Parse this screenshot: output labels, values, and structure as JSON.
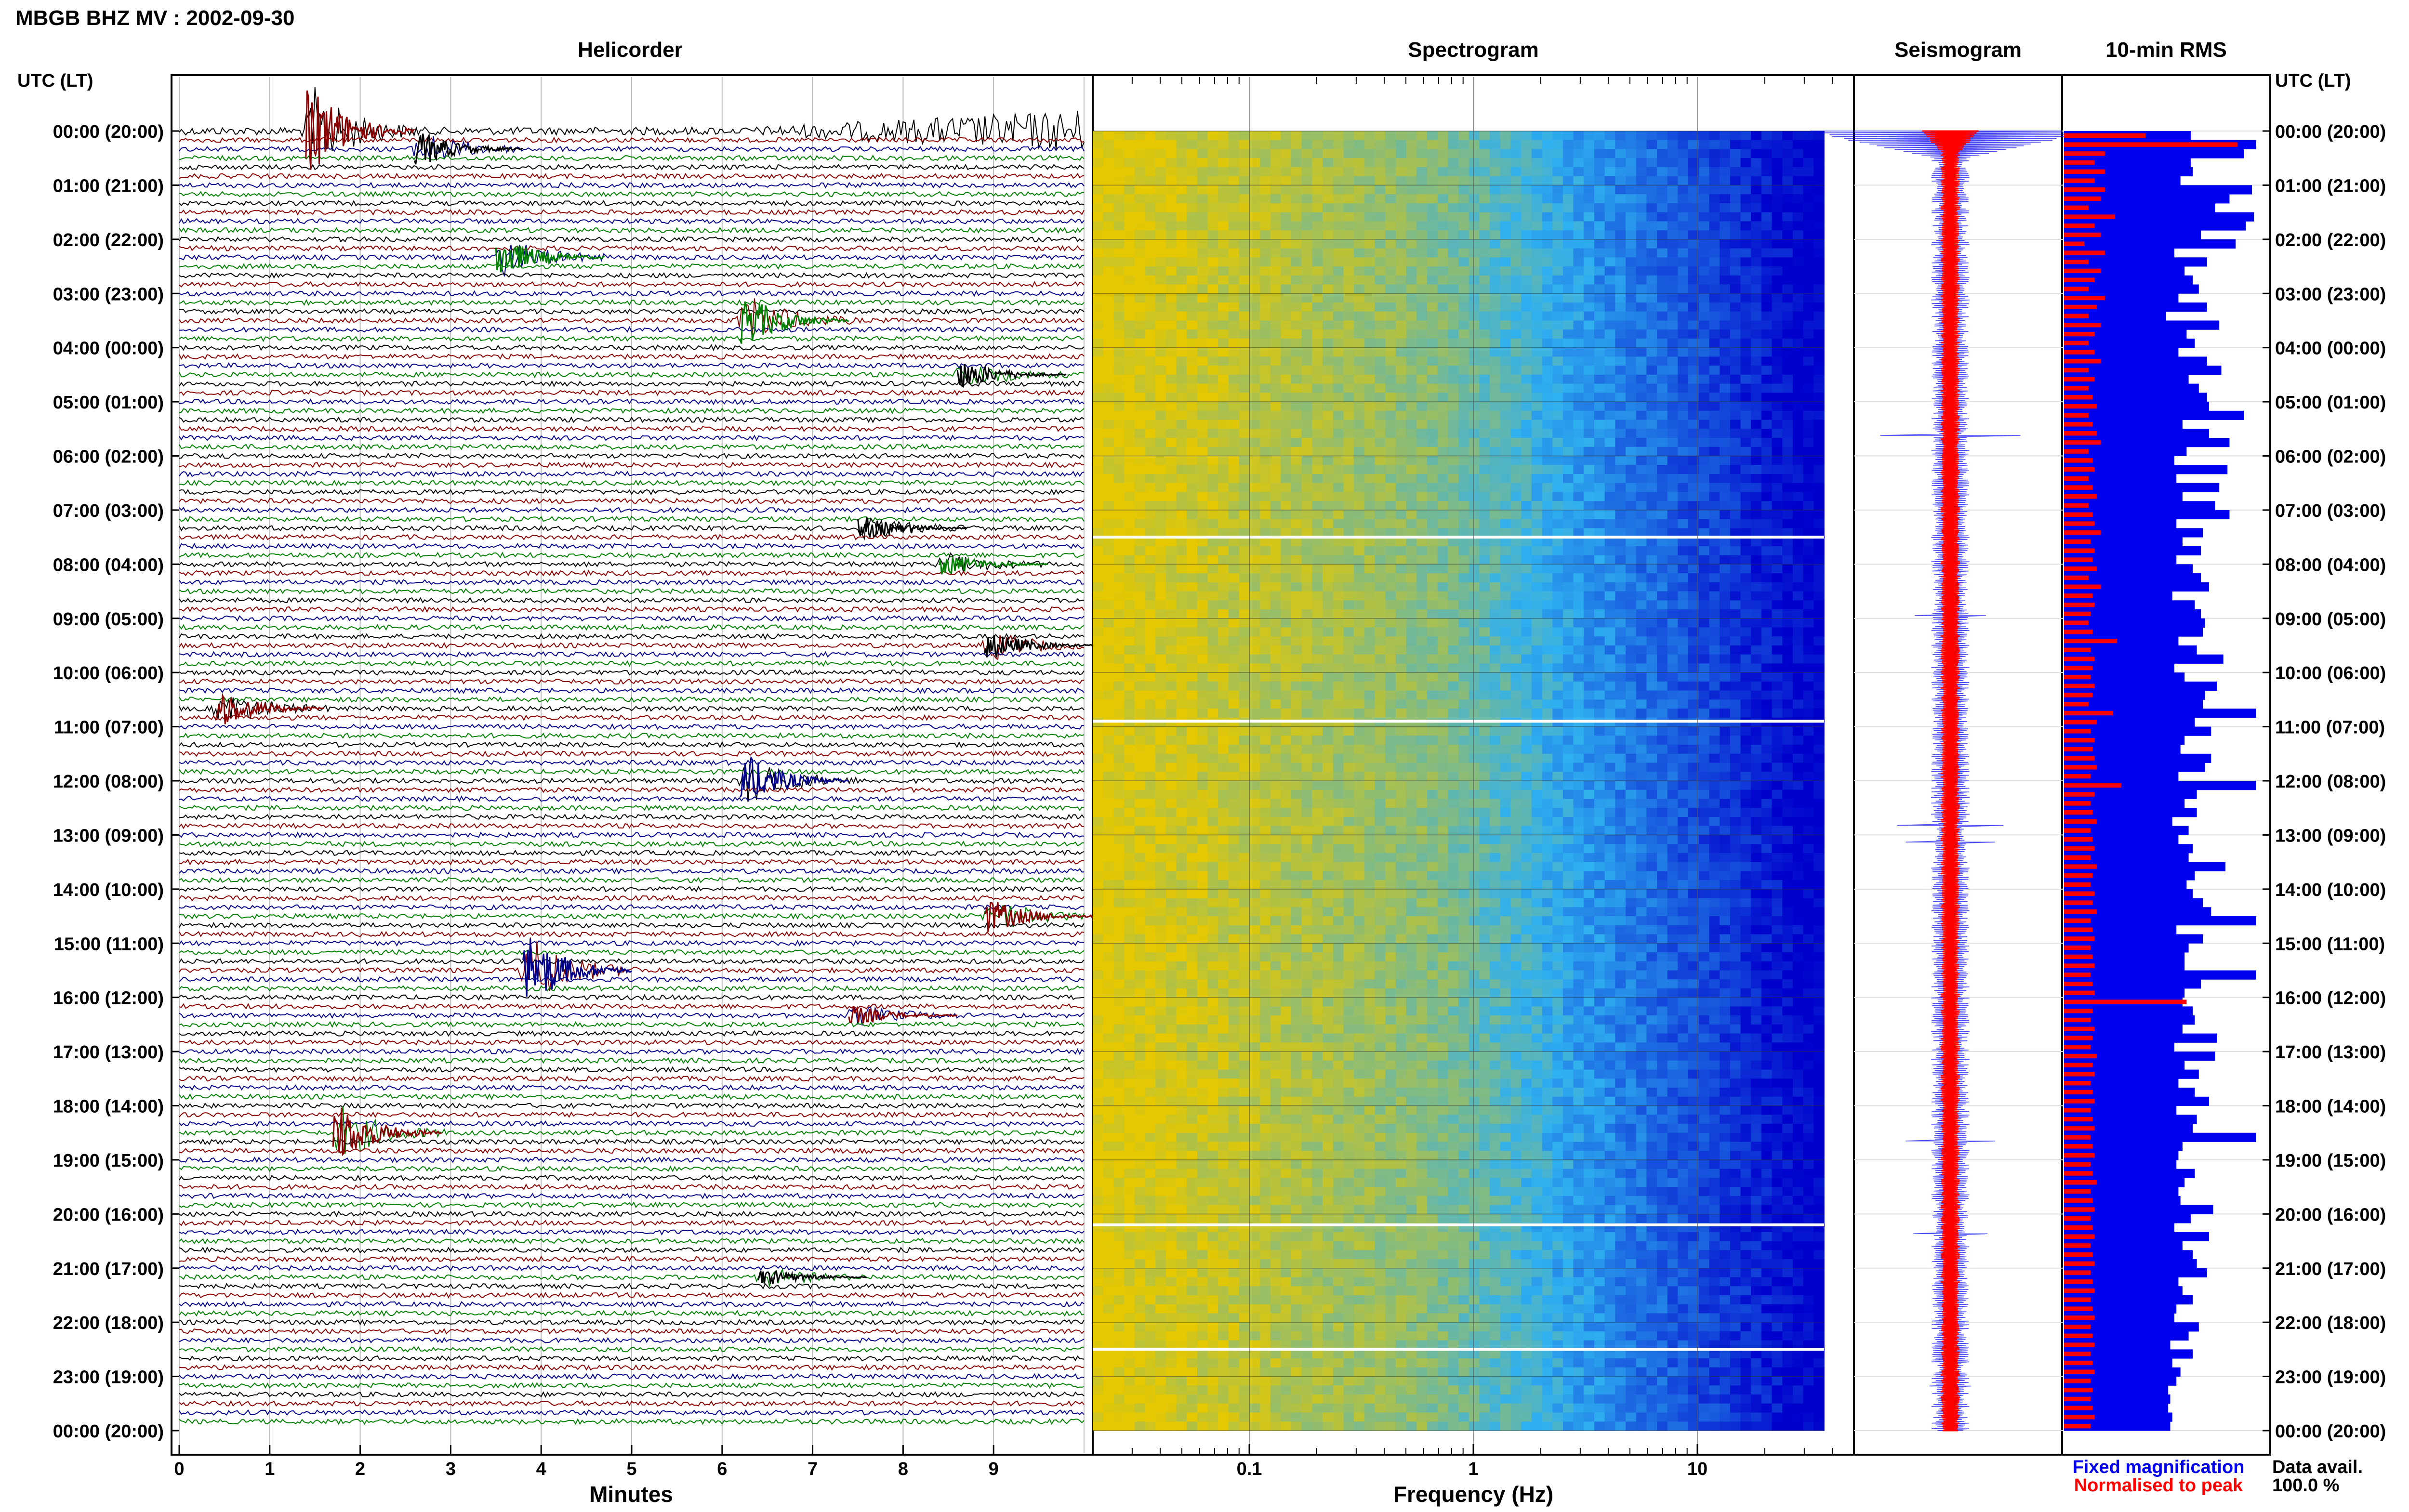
{
  "title": "MBGB BHZ MV : 2002-09-30",
  "panels": {
    "helicorder": "Helicorder",
    "spectrogram": "Spectrogram",
    "seismogram": "Seismogram",
    "rms": "10-min RMS"
  },
  "time_axis_label": "UTC (LT)",
  "time_labels": [
    "00:00 (20:00)",
    "01:00 (21:00)",
    "02:00 (22:00)",
    "03:00 (23:00)",
    "04:00 (00:00)",
    "05:00 (01:00)",
    "06:00 (02:00)",
    "07:00 (03:00)",
    "08:00 (04:00)",
    "09:00 (05:00)",
    "10:00 (06:00)",
    "11:00 (07:00)",
    "12:00 (08:00)",
    "13:00 (09:00)",
    "14:00 (10:00)",
    "15:00 (11:00)",
    "16:00 (12:00)",
    "17:00 (13:00)",
    "18:00 (14:00)",
    "19:00 (15:00)",
    "20:00 (16:00)",
    "21:00 (17:00)",
    "22:00 (18:00)",
    "23:00 (19:00)",
    "00:00 (20:00)"
  ],
  "helicorder_axis": {
    "label": "Minutes",
    "ticks": [
      "0",
      "1",
      "2",
      "3",
      "4",
      "5",
      "6",
      "7",
      "8",
      "9"
    ]
  },
  "spectrogram_axis": {
    "label": "Frequency (Hz)",
    "ticks": [
      "0.1",
      "1",
      "10"
    ]
  },
  "legend": {
    "fixed": "Fixed magnification",
    "normalised": "Normalised to peak"
  },
  "availability": {
    "label": "Data avail.",
    "value": "100.0 %"
  },
  "colors": {
    "trace_black": "#000000",
    "trace_red": "#8b0000",
    "trace_blue": "#00008b",
    "trace_green": "#008000",
    "fixed": "#0000ee",
    "normalised": "#ff0000",
    "spec_low": "#e6c800",
    "spec_mid": "#2fb0f0",
    "spec_high": "#0000cc"
  },
  "chart_data": {
    "type": "heatmap",
    "station": "MBGB BHZ MV",
    "date": "2002-09-30",
    "helicorder": {
      "minutes_per_line": 10,
      "lines": 144,
      "trace_colors": [
        "black",
        "red",
        "blue",
        "green"
      ],
      "events": [
        {
          "line": 0,
          "minute": 1.5,
          "amp": 3.0,
          "color": "red"
        },
        {
          "line": 2,
          "minute": 2.7,
          "amp": 1.2,
          "color": "black"
        },
        {
          "line": 14,
          "minute": 3.6,
          "amp": 1.4,
          "color": "green"
        },
        {
          "line": 21,
          "minute": 6.3,
          "amp": 1.8,
          "color": "green"
        },
        {
          "line": 27,
          "minute": 8.7,
          "amp": 1.0,
          "color": "black"
        },
        {
          "line": 44,
          "minute": 7.6,
          "amp": 0.8,
          "color": "black"
        },
        {
          "line": 48,
          "minute": 8.5,
          "amp": 0.8,
          "color": "green"
        },
        {
          "line": 57,
          "minute": 9.0,
          "amp": 1.0,
          "color": "black"
        },
        {
          "line": 64,
          "minute": 0.5,
          "amp": 1.3,
          "color": "red"
        },
        {
          "line": 72,
          "minute": 6.3,
          "amp": 1.8,
          "color": "blue"
        },
        {
          "line": 87,
          "minute": 9.0,
          "amp": 1.2,
          "color": "red"
        },
        {
          "line": 93,
          "minute": 3.9,
          "amp": 2.6,
          "color": "blue"
        },
        {
          "line": 98,
          "minute": 7.5,
          "amp": 0.7,
          "color": "red"
        },
        {
          "line": 111,
          "minute": 1.8,
          "amp": 2.0,
          "color": "red"
        },
        {
          "line": 127,
          "minute": 6.5,
          "amp": 0.6,
          "color": "black"
        }
      ]
    },
    "spectrogram": {
      "x_scale": "log",
      "xlim_hz": [
        0.02,
        50
      ],
      "rows": 144,
      "gaps_at_hour": [
        7.5,
        10.9,
        20.2,
        22.5
      ]
    },
    "rms_10min": {
      "fixed": [
        0.62,
        0.94,
        0.88,
        0.62,
        0.63,
        0.57,
        0.92,
        0.81,
        0.74,
        0.93,
        0.89,
        0.67,
        0.84,
        0.54,
        0.7,
        0.59,
        0.63,
        0.66,
        0.56,
        0.7,
        0.5,
        0.76,
        0.6,
        0.64,
        0.56,
        0.7,
        0.77,
        0.61,
        0.66,
        0.7,
        0.71,
        0.88,
        0.58,
        0.71,
        0.81,
        0.6,
        0.54,
        0.8,
        0.55,
        0.76,
        0.58,
        0.74,
        0.81,
        0.55,
        0.68,
        0.58,
        0.67,
        0.55,
        0.63,
        0.67,
        0.71,
        0.53,
        0.64,
        0.67,
        0.69,
        0.68,
        0.56,
        0.65,
        0.78,
        0.54,
        0.59,
        0.75,
        0.69,
        0.68,
        0.94,
        0.64,
        0.72,
        0.59,
        0.57,
        0.72,
        0.69,
        0.56,
        0.94,
        0.65,
        0.59,
        0.65,
        0.53,
        0.61,
        0.56,
        0.63,
        0.61,
        0.79,
        0.64,
        0.6,
        0.63,
        0.68,
        0.72,
        0.94,
        0.55,
        0.68,
        0.61,
        0.59,
        0.59,
        0.94,
        0.67,
        0.59,
        0.58,
        0.63,
        0.64,
        0.58,
        0.75,
        0.54,
        0.74,
        0.59,
        0.66,
        0.56,
        0.64,
        0.71,
        0.55,
        0.65,
        0.63,
        0.94,
        0.58,
        0.56,
        0.55,
        0.64,
        0.59,
        0.56,
        0.57,
        0.73,
        0.62,
        0.54,
        0.71,
        0.58,
        0.63,
        0.65,
        0.7,
        0.56,
        0.58,
        0.63,
        0.55,
        0.54,
        0.66,
        0.61,
        0.52,
        0.63,
        0.53,
        0.57,
        0.55,
        0.51,
        0.52,
        0.51,
        0.53,
        0.52
      ],
      "normalised": [
        0.4,
        0.85,
        0.2,
        0.15,
        0.2,
        0.15,
        0.2,
        0.18,
        0.12,
        0.25,
        0.15,
        0.18,
        0.1,
        0.2,
        0.12,
        0.18,
        0.15,
        0.12,
        0.2,
        0.16,
        0.12,
        0.18,
        0.15,
        0.12,
        0.15,
        0.18,
        0.12,
        0.15,
        0.12,
        0.14,
        0.16,
        0.12,
        0.14,
        0.16,
        0.18,
        0.12,
        0.14,
        0.15,
        0.12,
        0.14,
        0.16,
        0.12,
        0.14,
        0.15,
        0.18,
        0.13,
        0.15,
        0.14,
        0.16,
        0.12,
        0.18,
        0.14,
        0.15,
        0.13,
        0.12,
        0.14,
        0.26,
        0.13,
        0.15,
        0.14,
        0.13,
        0.15,
        0.14,
        0.12,
        0.24,
        0.16,
        0.13,
        0.15,
        0.14,
        0.15,
        0.16,
        0.13,
        0.28,
        0.15,
        0.13,
        0.14,
        0.16,
        0.13,
        0.14,
        0.15,
        0.13,
        0.16,
        0.14,
        0.13,
        0.15,
        0.14,
        0.16,
        0.13,
        0.14,
        0.15,
        0.13,
        0.14,
        0.15,
        0.13,
        0.14,
        0.15,
        0.6,
        0.14,
        0.13,
        0.15,
        0.14,
        0.13,
        0.16,
        0.14,
        0.15,
        0.13,
        0.14,
        0.15,
        0.13,
        0.14,
        0.15,
        0.13,
        0.14,
        0.15,
        0.13,
        0.14,
        0.16,
        0.13,
        0.14,
        0.15,
        0.13,
        0.14,
        0.15,
        0.13,
        0.14,
        0.15,
        0.13,
        0.14,
        0.15,
        0.13,
        0.14,
        0.15,
        0.13,
        0.14,
        0.15,
        0.13,
        0.14,
        0.15,
        0.13,
        0.14,
        0.13,
        0.14,
        0.15,
        0.13
      ]
    }
  }
}
